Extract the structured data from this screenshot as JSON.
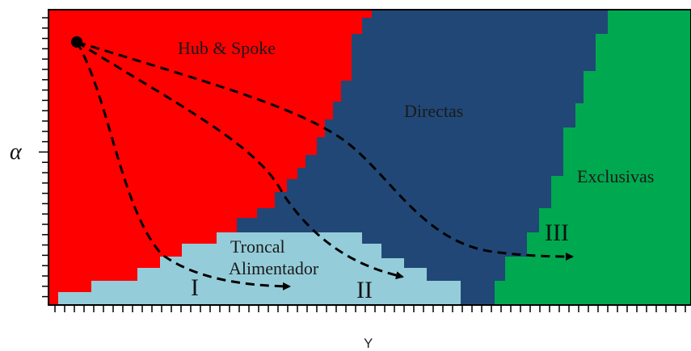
{
  "figure": {
    "regions": {
      "hub_spoke": {
        "label": "Hub & Spoke",
        "color": "#ff0000"
      },
      "directas": {
        "label": "Directas",
        "color": "#214776"
      },
      "exclusivas": {
        "label": "Exclusivas",
        "color": "#00a84f"
      },
      "troncal": {
        "label_line1": "Troncal",
        "label_line2": "Alimentador",
        "color": "#94cdd9"
      }
    },
    "paths": [
      {
        "id": "I",
        "label": "I"
      },
      {
        "id": "II",
        "label": "II"
      },
      {
        "id": "III",
        "label": "III"
      }
    ],
    "axes": {
      "y_label": "α",
      "x_label": "Y"
    }
  }
}
